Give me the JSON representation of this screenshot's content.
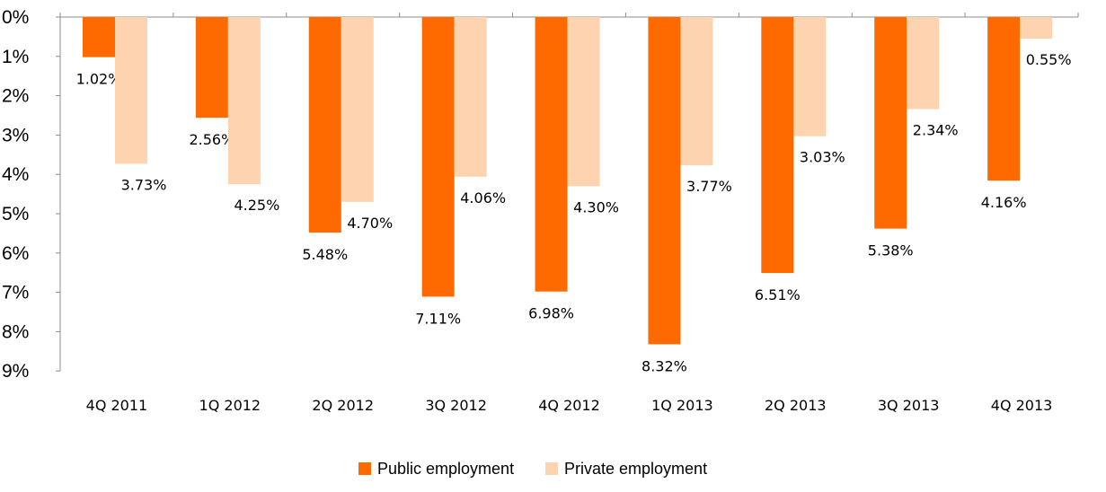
{
  "chart_data": {
    "type": "bar",
    "categories": [
      "4Q 2011",
      "1Q 2012",
      "2Q 2012",
      "3Q 2012",
      "4Q 2012",
      "1Q 2013",
      "2Q 2013",
      "3Q 2013",
      "4Q 2013"
    ],
    "series": [
      {
        "name": "Public employment",
        "color": "#ff6a00",
        "values": [
          1.02,
          2.56,
          5.48,
          7.11,
          6.98,
          8.32,
          6.51,
          5.38,
          4.16
        ],
        "labels": [
          "1.02%",
          "2.56%",
          "5.48%",
          "7.11%",
          "6.98%",
          "8.32%",
          "6.51%",
          "5.38%",
          "4.16%"
        ]
      },
      {
        "name": "Private employment",
        "color": "#fdd3b0",
        "values": [
          3.73,
          4.25,
          4.7,
          4.06,
          4.3,
          3.77,
          3.03,
          2.34,
          0.55
        ],
        "labels": [
          "3.73%",
          "4.25%",
          "4.70%",
          "4.06%",
          "4.30%",
          "3.77%",
          "3.03%",
          "2.34%",
          "0.55%"
        ]
      }
    ],
    "y_ticks": [
      "0%",
      "1%",
      "2%",
      "3%",
      "4%",
      "5%",
      "6%",
      "7%",
      "8%",
      "9%"
    ],
    "ylim": [
      0,
      9
    ],
    "y_inverted": true,
    "grid": false,
    "legend_position": "bottom-center",
    "title": "",
    "xlabel": "",
    "ylabel": ""
  }
}
